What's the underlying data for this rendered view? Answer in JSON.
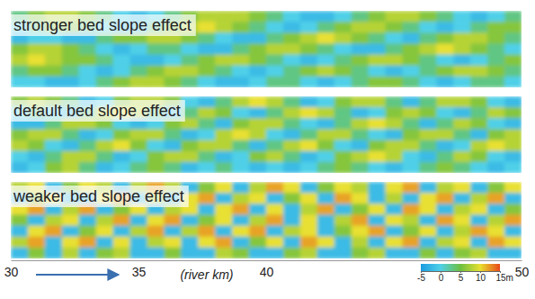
{
  "chart_data": {
    "type": "heatmap",
    "xlabel": "(river km)",
    "xlim": [
      30,
      50
    ],
    "xticks": [
      30,
      35,
      40,
      50
    ],
    "colorbar": {
      "range": [
        -5,
        15
      ],
      "ticks": [
        -5,
        0,
        5,
        10,
        {
          "value": 15,
          "label": "15m"
        }
      ]
    },
    "panels": [
      {
        "title": "stronger bed slope effect",
        "cells": [
          [
            3,
            6,
            8,
            8,
            6,
            3,
            0,
            -2,
            0,
            3,
            6,
            8,
            8,
            8,
            6,
            3,
            0,
            -2,
            -2,
            0,
            3,
            6,
            8,
            8,
            6,
            3,
            0,
            -2,
            0,
            3
          ],
          [
            0,
            3,
            6,
            6,
            3,
            0,
            -2,
            -2,
            3,
            6,
            8,
            10,
            8,
            6,
            3,
            0,
            -2,
            0,
            3,
            6,
            8,
            8,
            6,
            3,
            0,
            -2,
            0,
            3,
            6,
            6
          ],
          [
            -2,
            0,
            0,
            -2,
            -2,
            3,
            6,
            6,
            8,
            8,
            6,
            3,
            0,
            -2,
            -2,
            3,
            6,
            8,
            10,
            8,
            6,
            3,
            0,
            -2,
            3,
            6,
            8,
            8,
            6,
            3
          ],
          [
            6,
            8,
            8,
            6,
            3,
            0,
            -2,
            0,
            3,
            3,
            0,
            -2,
            -2,
            3,
            6,
            8,
            8,
            6,
            3,
            0,
            -2,
            -2,
            3,
            6,
            8,
            10,
            8,
            6,
            3,
            0
          ],
          [
            8,
            10,
            8,
            6,
            6,
            3,
            0,
            -2,
            -2,
            0,
            3,
            6,
            8,
            8,
            6,
            3,
            0,
            -2,
            0,
            3,
            6,
            8,
            8,
            6,
            3,
            0,
            -2,
            0,
            3,
            6
          ],
          [
            3,
            6,
            6,
            3,
            0,
            -2,
            0,
            3,
            6,
            8,
            8,
            6,
            3,
            0,
            -2,
            0,
            3,
            6,
            8,
            6,
            3,
            0,
            -2,
            0,
            3,
            6,
            8,
            8,
            6,
            3
          ],
          [
            0,
            0,
            -2,
            -2,
            0,
            3,
            6,
            8,
            8,
            6,
            3,
            0,
            -2,
            -2,
            0,
            3,
            3,
            0,
            -2,
            0,
            3,
            6,
            6,
            3,
            0,
            -2,
            0,
            3,
            3,
            0
          ]
        ]
      },
      {
        "title": "default bed slope effect",
        "cells": [
          [
            6,
            8,
            6,
            3,
            -2,
            0,
            6,
            8,
            8,
            6,
            0,
            -2,
            3,
            8,
            10,
            8,
            3,
            -2,
            0,
            6,
            8,
            8,
            3,
            -2,
            3,
            8,
            8,
            6,
            0,
            -2
          ],
          [
            0,
            3,
            0,
            -2,
            3,
            8,
            10,
            8,
            3,
            -2,
            3,
            8,
            6,
            0,
            -2,
            3,
            8,
            10,
            8,
            3,
            -2,
            0,
            6,
            8,
            6,
            0,
            -2,
            3,
            8,
            6
          ],
          [
            -2,
            -2,
            3,
            8,
            8,
            6,
            0,
            -2,
            0,
            6,
            8,
            3,
            -2,
            6,
            8,
            8,
            3,
            0,
            -2,
            3,
            8,
            10,
            8,
            3,
            -2,
            3,
            8,
            6,
            0,
            -2
          ],
          [
            6,
            8,
            8,
            3,
            -2,
            0,
            6,
            8,
            8,
            3,
            -2,
            0,
            8,
            10,
            8,
            0,
            -2,
            3,
            8,
            8,
            3,
            0,
            -2,
            6,
            8,
            8,
            3,
            -2,
            6,
            8
          ],
          [
            8,
            6,
            0,
            -2,
            3,
            8,
            10,
            6,
            0,
            -2,
            6,
            8,
            8,
            3,
            -2,
            3,
            8,
            10,
            6,
            0,
            -2,
            6,
            8,
            8,
            3,
            -2,
            0,
            8,
            10,
            8
          ],
          [
            0,
            -2,
            3,
            8,
            8,
            3,
            -2,
            0,
            6,
            8,
            8,
            3,
            -2,
            0,
            6,
            8,
            3,
            -2,
            0,
            6,
            8,
            10,
            8,
            0,
            -2,
            3,
            8,
            6,
            0,
            -2
          ],
          [
            -2,
            0,
            6,
            8,
            3,
            -2,
            0,
            3,
            6,
            3,
            -2,
            0,
            3,
            0,
            -2,
            0,
            -2,
            0,
            3,
            6,
            3,
            0,
            -2,
            0,
            3,
            6,
            3,
            0,
            -2,
            0
          ]
        ]
      },
      {
        "title": "weaker bed slope effect",
        "cells": [
          [
            8,
            10,
            -2,
            6,
            10,
            8,
            -2,
            8,
            12,
            8,
            -2,
            6,
            10,
            -2,
            8,
            12,
            10,
            -2,
            6,
            10,
            8,
            -2,
            10,
            12,
            -2,
            8,
            10,
            -2,
            6,
            10
          ],
          [
            -2,
            6,
            10,
            -2,
            -2,
            10,
            12,
            -2,
            8,
            -2,
            10,
            12,
            -2,
            8,
            10,
            -2,
            6,
            10,
            -2,
            12,
            10,
            -2,
            8,
            -2,
            10,
            12,
            -2,
            8,
            12,
            -2
          ],
          [
            10,
            12,
            -2,
            8,
            12,
            -2,
            6,
            10,
            -2,
            8,
            10,
            -2,
            10,
            12,
            -2,
            10,
            -2,
            8,
            12,
            -2,
            6,
            10,
            -2,
            12,
            10,
            -2,
            8,
            10,
            -2,
            6
          ],
          [
            6,
            -2,
            8,
            10,
            -2,
            8,
            12,
            -2,
            10,
            12,
            -2,
            6,
            10,
            -2,
            8,
            12,
            -2,
            10,
            -2,
            8,
            12,
            -2,
            10,
            8,
            -2,
            12,
            10,
            -2,
            8,
            12
          ],
          [
            -2,
            10,
            12,
            -2,
            6,
            10,
            -2,
            8,
            12,
            -2,
            8,
            12,
            -2,
            10,
            12,
            -2,
            8,
            10,
            -2,
            6,
            10,
            12,
            -2,
            6,
            10,
            -2,
            8,
            12,
            10,
            -2
          ],
          [
            8,
            12,
            -2,
            10,
            12,
            -2,
            10,
            -2,
            8,
            10,
            -2,
            10,
            12,
            -2,
            6,
            10,
            -2,
            12,
            10,
            -2,
            8,
            -2,
            10,
            12,
            -2,
            8,
            10,
            -2,
            12,
            10
          ],
          [
            -2,
            6,
            -2,
            8,
            -2,
            6,
            8,
            -2,
            -2,
            6,
            -2,
            -2,
            8,
            6,
            -2,
            -2,
            6,
            8,
            -2,
            -2,
            6,
            8,
            -2,
            -2,
            6,
            -2,
            6,
            8,
            -2,
            -2
          ]
        ]
      }
    ]
  }
}
